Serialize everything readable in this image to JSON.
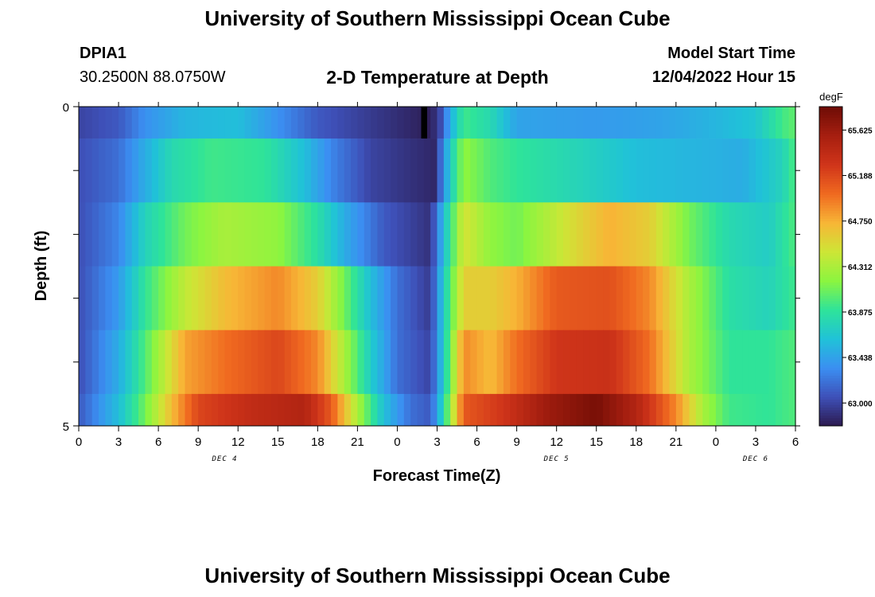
{
  "header": {
    "title": "University of Southern Mississippi Ocean Cube",
    "station_id": "DPIA1",
    "station_coords": "30.2500N  88.0750W",
    "subtitle": "2-D Temperature at Depth",
    "model_start_label": "Model Start Time",
    "model_start_value": "12/04/2022 Hour 15"
  },
  "footer": {
    "title": "University of Southern Mississippi Ocean Cube"
  },
  "chart_data": {
    "type": "heatmap",
    "title": "2-D Temperature at Depth",
    "xlabel": "Forecast Time(Z)",
    "ylabel": "Depth (ft)",
    "x_tick_labels": [
      "0",
      "3",
      "6",
      "9",
      "12",
      "15",
      "18",
      "21",
      "0",
      "3",
      "6",
      "9",
      "12",
      "15",
      "18",
      "21",
      "0",
      "3",
      "6"
    ],
    "x_hours": [
      0,
      54
    ],
    "date_labels": [
      {
        "text": "DEC 4",
        "hour": 11
      },
      {
        "text": "DEC 5",
        "hour": 36
      },
      {
        "text": "DEC 6",
        "hour": 51
      }
    ],
    "y_tick_labels": [
      "0",
      "5"
    ],
    "ylim": [
      0,
      5
    ],
    "y_reversed": true,
    "colorbar": {
      "unit": "degF",
      "min": 62.78,
      "max": 65.85,
      "ticks": [
        "65.625",
        "65.188",
        "64.750",
        "64.312",
        "63.875",
        "63.438",
        "63.000"
      ],
      "colors": [
        "#2c1a4e",
        "#3e50b8",
        "#3b8ff2",
        "#20c2d8",
        "#2ee39a",
        "#8bf540",
        "#cde636",
        "#f7b636",
        "#f06a20",
        "#d0351a",
        "#a71f10",
        "#6e0c05"
      ]
    },
    "depth_bands": [
      {
        "depth": [
          0.0,
          0.5
        ],
        "keys": [
          [
            0,
            63.0
          ],
          [
            3,
            63.1
          ],
          [
            5,
            63.35
          ],
          [
            8,
            63.55
          ],
          [
            12,
            63.6
          ],
          [
            15,
            63.35
          ],
          [
            18,
            63.1
          ],
          [
            22,
            62.95
          ],
          [
            25,
            62.85
          ],
          [
            26.5,
            62.8
          ],
          [
            27.2,
            63.0
          ],
          [
            28,
            63.5
          ],
          [
            29,
            63.95
          ],
          [
            31,
            63.8
          ],
          [
            33,
            63.45
          ],
          [
            39,
            63.4
          ],
          [
            44,
            63.45
          ],
          [
            48,
            63.55
          ],
          [
            51,
            63.65
          ],
          [
            53,
            63.95
          ],
          [
            54,
            64.05
          ]
        ],
        "spike": {
          "hour": 25.8,
          "width": 0.45
        }
      },
      {
        "depth": [
          0.5,
          1.5
        ],
        "keys": [
          [
            0,
            63.05
          ],
          [
            3,
            63.2
          ],
          [
            5,
            63.5
          ],
          [
            7,
            63.8
          ],
          [
            10,
            63.95
          ],
          [
            14,
            63.9
          ],
          [
            17,
            63.6
          ],
          [
            19,
            63.3
          ],
          [
            22,
            63.0
          ],
          [
            25,
            62.9
          ],
          [
            26.8,
            62.85
          ],
          [
            28,
            63.7
          ],
          [
            29,
            64.2
          ],
          [
            31,
            64.0
          ],
          [
            33,
            63.9
          ],
          [
            38,
            63.75
          ],
          [
            42,
            63.6
          ],
          [
            46,
            63.55
          ],
          [
            50,
            63.5
          ],
          [
            53,
            63.75
          ],
          [
            54,
            64.0
          ]
        ]
      },
      {
        "depth": [
          1.5,
          2.5
        ],
        "keys": [
          [
            0,
            63.05
          ],
          [
            3,
            63.3
          ],
          [
            5,
            63.75
          ],
          [
            8,
            64.1
          ],
          [
            11,
            64.3
          ],
          [
            15,
            64.2
          ],
          [
            18,
            63.85
          ],
          [
            20,
            63.5
          ],
          [
            23,
            63.1
          ],
          [
            26.5,
            62.9
          ],
          [
            27.5,
            63.6
          ],
          [
            29,
            64.5
          ],
          [
            31,
            64.2
          ],
          [
            33,
            64.1
          ],
          [
            37,
            64.5
          ],
          [
            40,
            64.75
          ],
          [
            43,
            64.6
          ],
          [
            46,
            64.1
          ],
          [
            49,
            63.8
          ],
          [
            52,
            63.7
          ],
          [
            54,
            64.0
          ]
        ]
      },
      {
        "depth": [
          2.5,
          3.5
        ],
        "keys": [
          [
            0,
            63.05
          ],
          [
            3,
            63.4
          ],
          [
            5,
            63.9
          ],
          [
            8,
            64.4
          ],
          [
            11,
            64.7
          ],
          [
            15,
            64.9
          ],
          [
            18,
            64.6
          ],
          [
            20,
            64.1
          ],
          [
            22,
            63.6
          ],
          [
            24,
            63.2
          ],
          [
            26.5,
            62.95
          ],
          [
            27.5,
            63.7
          ],
          [
            29,
            64.6
          ],
          [
            31,
            64.6
          ],
          [
            33,
            64.75
          ],
          [
            36,
            65.1
          ],
          [
            40,
            65.15
          ],
          [
            43,
            64.9
          ],
          [
            46,
            64.3
          ],
          [
            49,
            63.85
          ],
          [
            52,
            63.75
          ],
          [
            54,
            63.95
          ]
        ]
      },
      {
        "depth": [
          3.5,
          4.5
        ],
        "keys": [
          [
            0,
            63.05
          ],
          [
            3,
            63.5
          ],
          [
            5,
            64.0
          ],
          [
            8,
            64.8
          ],
          [
            11,
            65.0
          ],
          [
            15,
            65.2
          ],
          [
            18,
            64.9
          ],
          [
            20,
            64.3
          ],
          [
            22,
            63.7
          ],
          [
            24,
            63.2
          ],
          [
            26.5,
            63.0
          ],
          [
            27.5,
            63.7
          ],
          [
            29,
            64.9
          ],
          [
            31,
            64.7
          ],
          [
            33,
            65.0
          ],
          [
            36,
            65.3
          ],
          [
            40,
            65.35
          ],
          [
            43,
            65.0
          ],
          [
            46,
            64.3
          ],
          [
            49,
            63.9
          ],
          [
            52,
            63.9
          ],
          [
            54,
            64.0
          ]
        ]
      },
      {
        "depth": [
          4.5,
          5.0
        ],
        "keys": [
          [
            0,
            63.1
          ],
          [
            3,
            63.6
          ],
          [
            5,
            64.1
          ],
          [
            7,
            64.7
          ],
          [
            9,
            65.2
          ],
          [
            13,
            65.4
          ],
          [
            17,
            65.5
          ],
          [
            19,
            65.1
          ],
          [
            21,
            64.3
          ],
          [
            23,
            63.6
          ],
          [
            25,
            63.2
          ],
          [
            26.5,
            63.1
          ],
          [
            27.5,
            63.8
          ],
          [
            29,
            65.1
          ],
          [
            32,
            65.3
          ],
          [
            35,
            65.6
          ],
          [
            39,
            65.8
          ],
          [
            42,
            65.5
          ],
          [
            45,
            64.9
          ],
          [
            47,
            64.3
          ],
          [
            49,
            63.95
          ],
          [
            52,
            63.9
          ],
          [
            54,
            64.0
          ]
        ]
      }
    ]
  }
}
